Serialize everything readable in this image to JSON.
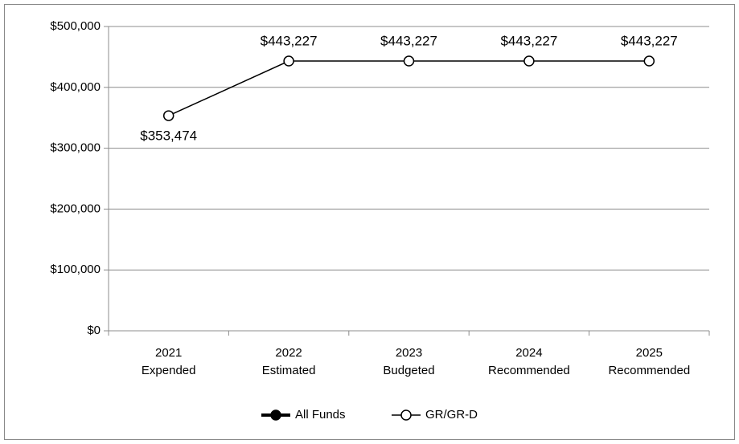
{
  "chart_data": {
    "type": "line",
    "categories": [
      [
        "2021",
        "Expended"
      ],
      [
        "2022",
        "Estimated"
      ],
      [
        "2023",
        "Budgeted"
      ],
      [
        "2024",
        "Recommended"
      ],
      [
        "2025",
        "Recommended"
      ]
    ],
    "series": [
      {
        "name": "All Funds",
        "color": "#000000",
        "values": [
          null,
          null,
          null,
          null,
          null
        ]
      },
      {
        "name": "GR/GR-D",
        "color": "#000000",
        "values": [
          353474,
          443227,
          443227,
          443227,
          443227
        ],
        "value_labels": [
          "$353,474",
          "$443,227",
          "$443,227",
          "$443,227",
          "$443,227"
        ]
      }
    ],
    "ylim": [
      0,
      500000
    ],
    "yticks": [
      {
        "value": 0,
        "label": "$0"
      },
      {
        "value": 100000,
        "label": "$100,000"
      },
      {
        "value": 200000,
        "label": "$200,000"
      },
      {
        "value": 300000,
        "label": "$300,000"
      },
      {
        "value": 400000,
        "label": "$400,000"
      },
      {
        "value": 500000,
        "label": "$500,000"
      }
    ],
    "grid": true,
    "legend": "bottom"
  }
}
